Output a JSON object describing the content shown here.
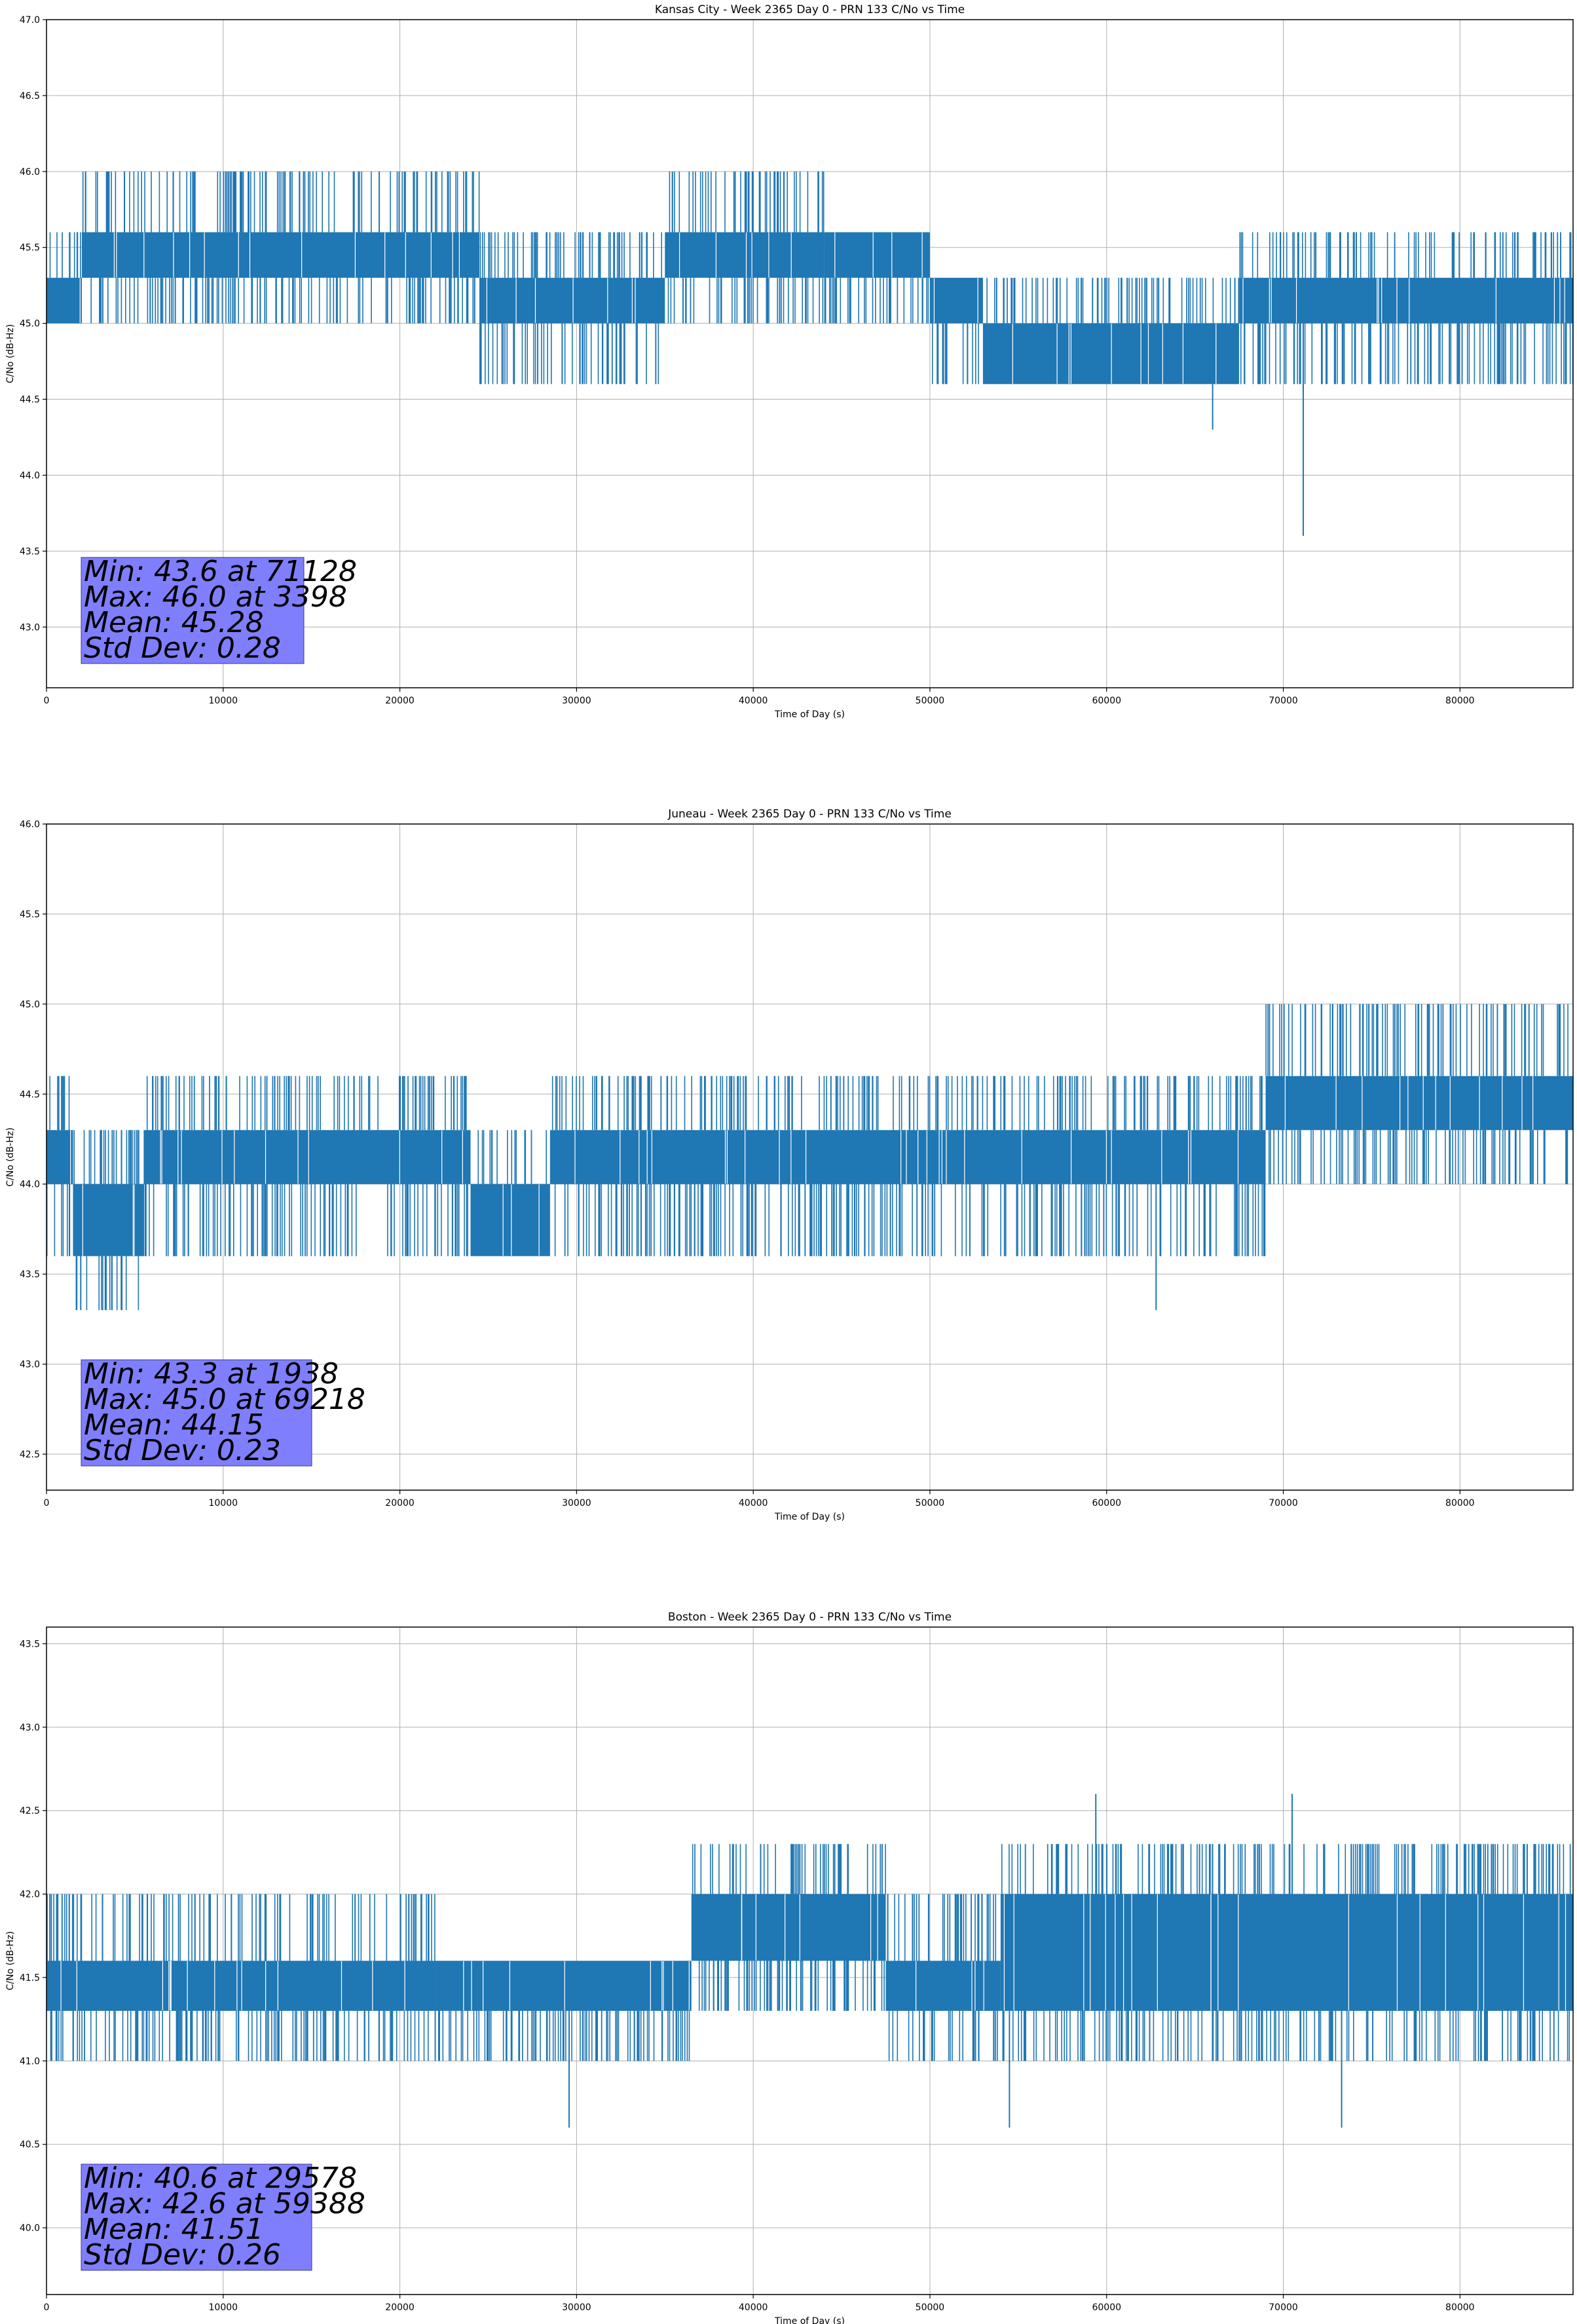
{
  "chart_data": [
    {
      "type": "line",
      "title": "Kansas City - Week 2365 Day 0 - PRN 133 C/No vs Time",
      "xlabel": "Time of Day (s)",
      "ylabel": "C/No (dB-Hz)",
      "xlim": [
        0,
        86400
      ],
      "ylim": [
        42.6,
        47.0
      ],
      "xticks": [
        0,
        10000,
        20000,
        30000,
        40000,
        50000,
        60000,
        70000,
        80000
      ],
      "yticks": [
        43.0,
        43.5,
        44.0,
        44.5,
        45.0,
        45.5,
        46.0,
        46.5,
        47.0
      ],
      "grid": true,
      "line_color": "#1f77b4",
      "series": [
        {
          "name": "C/No",
          "segments": [
            {
              "x": [
                0,
                2000
              ],
              "base": [
                45.0,
                45.3
              ],
              "spike_hi": 45.6,
              "spike_lo": 45.0
            },
            {
              "x": [
                2000,
                24500
              ],
              "base": [
                45.3,
                45.6
              ],
              "spike_hi": 46.0,
              "spike_lo": 45.0
            },
            {
              "x": [
                24500,
                35000
              ],
              "base": [
                45.0,
                45.3
              ],
              "spike_hi": 45.6,
              "spike_lo": 44.6
            },
            {
              "x": [
                35000,
                44000
              ],
              "base": [
                45.3,
                45.6
              ],
              "spike_hi": 46.0,
              "spike_lo": 45.0
            },
            {
              "x": [
                44000,
                50000
              ],
              "base": [
                45.3,
                45.6
              ],
              "spike_hi": 45.6,
              "spike_lo": 45.0
            },
            {
              "x": [
                50000,
                53000
              ],
              "base": [
                45.0,
                45.3
              ],
              "spike_hi": 45.3,
              "spike_lo": 44.6
            },
            {
              "x": [
                53000,
                67500
              ],
              "base": [
                44.6,
                45.0
              ],
              "spike_hi": 45.3,
              "spike_lo": 44.6
            },
            {
              "x": [
                67500,
                86400
              ],
              "base": [
                45.0,
                45.3
              ],
              "spike_hi": 45.6,
              "spike_lo": 44.6
            }
          ],
          "spikes": [
            {
              "x": 71128,
              "y": 43.6
            },
            {
              "x": 3398,
              "y": 46.0
            },
            {
              "x": 66000,
              "y": 44.3
            }
          ]
        }
      ],
      "stats": {
        "min_text": "Min: 43.6 at 71128",
        "max_text": "Max: 46.0 at 3398",
        "mean_text": "Mean: 45.28",
        "std_text": "Std Dev: 0.28"
      }
    },
    {
      "type": "line",
      "title": "Juneau - Week 2365 Day 0 - PRN 133 C/No vs Time",
      "xlabel": "Time of Day (s)",
      "ylabel": "C/No (dB-Hz)",
      "xlim": [
        0,
        86400
      ],
      "ylim": [
        42.3,
        46.0
      ],
      "xticks": [
        0,
        10000,
        20000,
        30000,
        40000,
        50000,
        60000,
        70000,
        80000
      ],
      "yticks": [
        42.5,
        43.0,
        43.5,
        44.0,
        44.5,
        45.0,
        45.5,
        46.0
      ],
      "grid": true,
      "line_color": "#1f77b4",
      "series": [
        {
          "name": "C/No",
          "segments": [
            {
              "x": [
                0,
                1500
              ],
              "base": [
                44.0,
                44.3
              ],
              "spike_hi": 44.6,
              "spike_lo": 43.6
            },
            {
              "x": [
                1500,
                5500
              ],
              "base": [
                43.6,
                44.0
              ],
              "spike_hi": 44.3,
              "spike_lo": 43.3
            },
            {
              "x": [
                5500,
                24000
              ],
              "base": [
                44.0,
                44.3
              ],
              "spike_hi": 44.6,
              "spike_lo": 43.6
            },
            {
              "x": [
                24000,
                28500
              ],
              "base": [
                43.6,
                44.0
              ],
              "spike_hi": 44.3,
              "spike_lo": 43.6
            },
            {
              "x": [
                28500,
                69000
              ],
              "base": [
                44.0,
                44.3
              ],
              "spike_hi": 44.6,
              "spike_lo": 43.6
            },
            {
              "x": [
                69000,
                86400
              ],
              "base": [
                44.3,
                44.6
              ],
              "spike_hi": 45.0,
              "spike_lo": 44.0
            }
          ],
          "spikes": [
            {
              "x": 1938,
              "y": 43.3
            },
            {
              "x": 69218,
              "y": 45.0
            },
            {
              "x": 62800,
              "y": 43.3
            }
          ]
        }
      ],
      "stats": {
        "min_text": "Min: 43.3 at 1938",
        "max_text": "Max: 45.0 at 69218",
        "mean_text": "Mean: 44.15",
        "std_text": "Std Dev: 0.23"
      }
    },
    {
      "type": "line",
      "title": "Boston - Week 2365 Day 0 - PRN 133 C/No vs Time",
      "xlabel": "Time of Day (s)",
      "ylabel": "C/No (dB-Hz)",
      "xlim": [
        0,
        86400
      ],
      "ylim": [
        39.6,
        43.6
      ],
      "xticks": [
        0,
        10000,
        20000,
        30000,
        40000,
        50000,
        60000,
        70000,
        80000
      ],
      "yticks": [
        40.0,
        40.5,
        41.0,
        41.5,
        42.0,
        42.5,
        43.0,
        43.5
      ],
      "grid": true,
      "line_color": "#1f77b4",
      "series": [
        {
          "name": "C/No",
          "segments": [
            {
              "x": [
                0,
                22000
              ],
              "base": [
                41.3,
                41.6
              ],
              "spike_hi": 42.0,
              "spike_lo": 41.0
            },
            {
              "x": [
                22000,
                36500
              ],
              "base": [
                41.3,
                41.6
              ],
              "spike_hi": 41.6,
              "spike_lo": 41.0
            },
            {
              "x": [
                36500,
                47500
              ],
              "base": [
                41.6,
                42.0
              ],
              "spike_hi": 42.3,
              "spike_lo": 41.3
            },
            {
              "x": [
                47500,
                54000
              ],
              "base": [
                41.3,
                41.6
              ],
              "spike_hi": 42.0,
              "spike_lo": 41.0
            },
            {
              "x": [
                54000,
                86400
              ],
              "base": [
                41.3,
                42.0
              ],
              "spike_hi": 42.3,
              "spike_lo": 41.0
            }
          ],
          "spikes": [
            {
              "x": 29578,
              "y": 40.6
            },
            {
              "x": 59388,
              "y": 42.6
            },
            {
              "x": 70500,
              "y": 42.6
            },
            {
              "x": 54500,
              "y": 40.6
            },
            {
              "x": 73300,
              "y": 40.6
            }
          ]
        }
      ],
      "stats": {
        "min_text": "Min: 40.6 at 29578",
        "max_text": "Max: 42.6 at 59388",
        "mean_text": "Mean: 41.51",
        "std_text": "Std Dev: 0.26"
      }
    }
  ]
}
